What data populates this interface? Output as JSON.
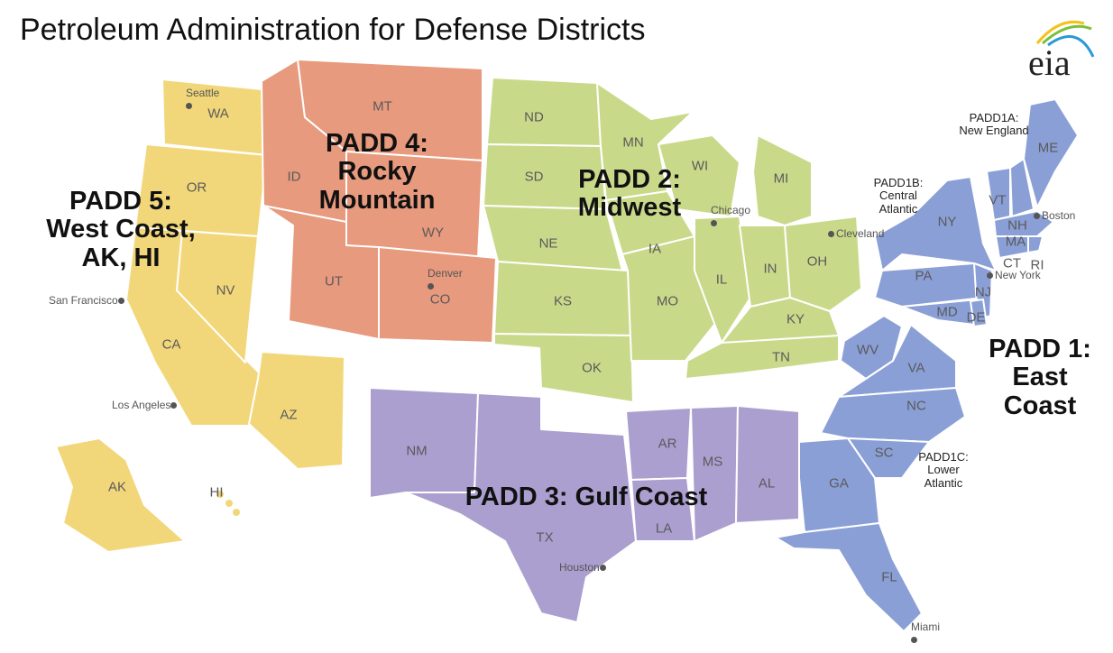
{
  "title": "Petroleum Administration for Defense Districts",
  "logo": "eia",
  "colors": {
    "padd1": "#8a9fd6",
    "padd2": "#c9d98a",
    "padd3": "#ab9fd0",
    "padd4": "#e79a7e",
    "padd5": "#f2d77a"
  },
  "padds": [
    {
      "id": "padd1",
      "lines": [
        "PADD 1:",
        "East",
        "Coast"
      ]
    },
    {
      "id": "padd2",
      "lines": [
        "PADD 2:",
        "Midwest"
      ]
    },
    {
      "id": "padd3",
      "lines": [
        "PADD 3: Gulf Coast"
      ]
    },
    {
      "id": "padd4",
      "lines": [
        "PADD 4:",
        "Rocky",
        "Mountain"
      ]
    },
    {
      "id": "padd5",
      "lines": [
        "PADD 5:",
        "West Coast,",
        "AK, HI"
      ]
    }
  ],
  "subdistricts": [
    {
      "lines": [
        "PADD1A:",
        "New England"
      ]
    },
    {
      "lines": [
        "PADD1B:",
        "Central",
        "Atlantic"
      ]
    },
    {
      "lines": [
        "PADD1C:",
        "Lower",
        "Atlantic"
      ]
    }
  ],
  "states": [
    "WA",
    "OR",
    "CA",
    "NV",
    "AZ",
    "AK",
    "HI",
    "MT",
    "ID",
    "WY",
    "UT",
    "CO",
    "ND",
    "SD",
    "NE",
    "KS",
    "OK",
    "MN",
    "IA",
    "MO",
    "WI",
    "IL",
    "IN",
    "MI",
    "OH",
    "KY",
    "TN",
    "NM",
    "TX",
    "AR",
    "LA",
    "MS",
    "AL",
    "ME",
    "VT",
    "NH",
    "MA",
    "CT",
    "RI",
    "NY",
    "PA",
    "NJ",
    "MD",
    "DE",
    "WV",
    "VA",
    "NC",
    "SC",
    "GA",
    "FL"
  ],
  "cities": [
    "Seattle",
    "San Francisco",
    "Los Angeles",
    "Denver",
    "Chicago",
    "Cleveland",
    "Boston",
    "New York",
    "Houston",
    "Miami"
  ]
}
